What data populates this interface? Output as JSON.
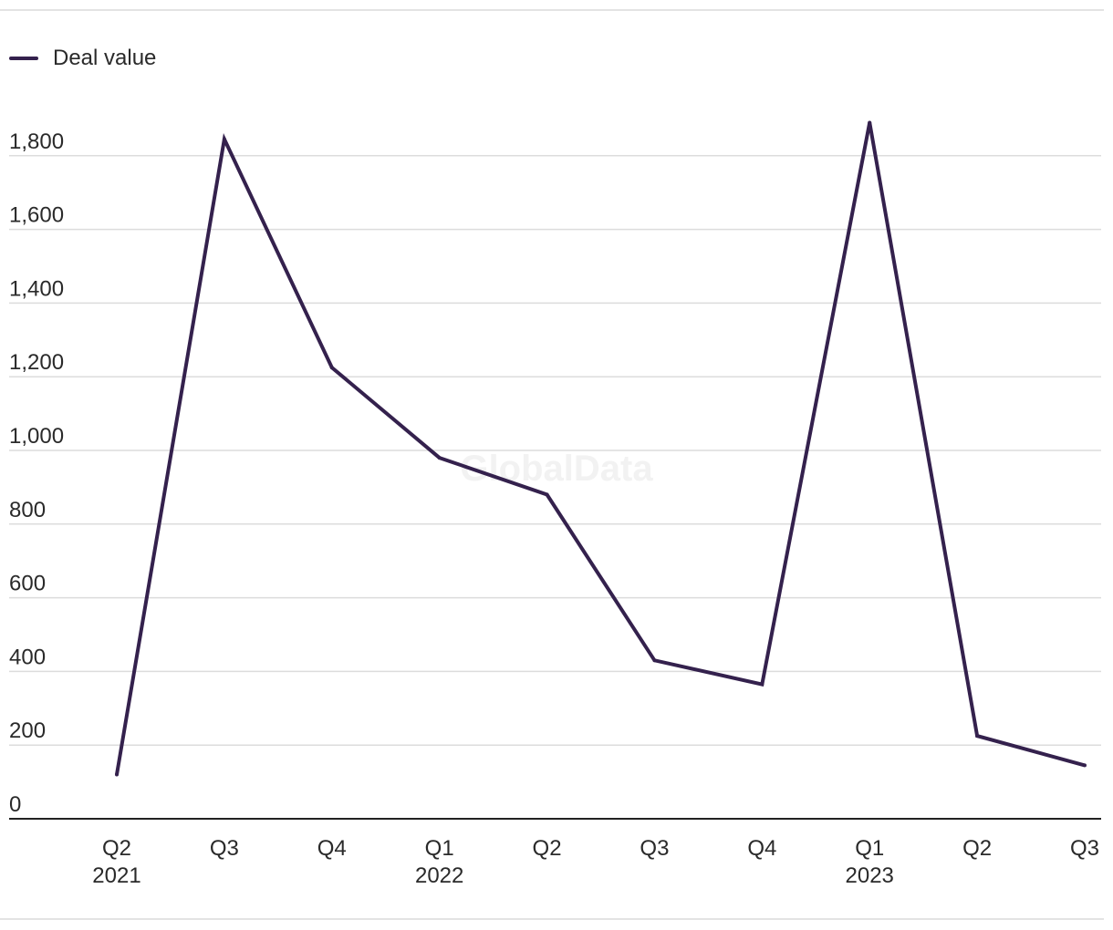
{
  "legend": {
    "label": "Deal value"
  },
  "watermark": "GlobalData",
  "colors": {
    "series": "#34214d",
    "grid": "#dcdcdc",
    "axis": "#222222"
  },
  "chart_data": {
    "type": "line",
    "x": [
      "Q2",
      "Q3",
      "Q4",
      "Q1",
      "Q2",
      "Q3",
      "Q4",
      "Q1",
      "Q2",
      "Q3"
    ],
    "x_group_labels": [
      "2021",
      "",
      "",
      "2022",
      "",
      "",
      "",
      "2023",
      "",
      ""
    ],
    "series": [
      {
        "name": "Deal value",
        "values": [
          120,
          1845,
          1225,
          980,
          880,
          430,
          365,
          1890,
          225,
          145
        ]
      }
    ],
    "y_ticks": [
      0,
      200,
      400,
      600,
      800,
      1000,
      1200,
      1400,
      1600,
      1800
    ],
    "y_tick_labels": [
      "0",
      "200",
      "400",
      "600",
      "800",
      "1,000",
      "1,200",
      "1,400",
      "1,600",
      "1,800"
    ],
    "ylim": [
      0,
      2000
    ],
    "grid": true,
    "legend_position": "top-left",
    "title": "",
    "xlabel": "",
    "ylabel": ""
  }
}
